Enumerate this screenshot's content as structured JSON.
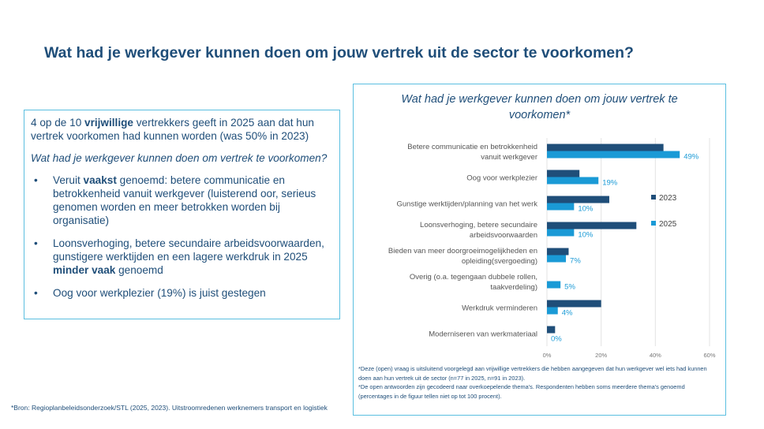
{
  "title": "Wat had je werkgever kunnen doen om jouw vertrek uit de sector te voorkomen?",
  "left": {
    "intro_pre": "4 op de 10 ",
    "intro_bold": "vrijwillige",
    "intro_post": " vertrekkers geeft in 2025 aan dat hun vertrek voorkomen had kunnen worden (was 50% in 2023)",
    "question": "Wat had je werkgever kunnen doen om vertrek te voorkomen?",
    "b1_pre": "Veruit ",
    "b1_bold": "vaakst",
    "b1_post": " genoemd: betere communicatie en betrokkenheid vanuit werkgever (luisterend oor, serieus genomen worden en meer betrokken worden bij organisatie)",
    "b2_pre": "Loonsverhoging, betere secundaire arbeidsvoorwaarden, gunstigere werktijden en een lagere werkdruk in 2025 ",
    "b2_bold": "minder vaak",
    "b2_post": " genoemd",
    "b3": "Oog voor werkplezier (19%) is juist gestegen"
  },
  "source": "*Bron: Regioplanbeleidsonderzoek/STL (2025, 2023). Uitstroomredenen werknemers transport en logistiek",
  "footnote1": "*Deze (open) vraag is uitsluitend voorgelegd aan vrijwillige vertrekkers die hebben aangegeven dat hun werkgever  wel iets had kunnen doen aan hun vertrek uit de sector (n=77 in 2025, n=91 in 2023).",
  "footnote2": "*De open antwoorden zijn gecodeerd naar overkoepelende thema's. Respondenten hebben soms meerdere thema's genoemd (percentages in de figuur tellen niet op tot 100 procent).",
  "chart_data": {
    "type": "bar",
    "orientation": "horizontal",
    "title": "Wat had je werkgever kunnen doen om jouw vertrek te voorkomen*",
    "categories": [
      [
        "Betere communicatie en betrokkenheid",
        "vanuit werkgever"
      ],
      [
        "Oog voor werkplezier"
      ],
      [
        "Gunstige werktijden/planning van het werk"
      ],
      [
        "Loonsverhoging, betere secundaire",
        "arbeidsvoorwaarden"
      ],
      [
        "Bieden van meer doorgroeimogelijkheden en",
        "opleiding(svergoeding)"
      ],
      [
        "Overig (o.a. tegengaan dubbele rollen,",
        "taakverdeling)"
      ],
      [
        "Werkdruk verminderen"
      ],
      [
        "Moderniseren van werkmateriaal"
      ]
    ],
    "series": [
      {
        "name": "2023",
        "color": "#1f4e79",
        "values": [
          43,
          12,
          23,
          33,
          8,
          0,
          20,
          3
        ],
        "labels": false
      },
      {
        "name": "2025",
        "color": "#1a9ad6",
        "values": [
          49,
          19,
          10,
          10,
          7,
          5,
          4,
          0
        ],
        "labels": true
      }
    ],
    "xlim": [
      0,
      60
    ],
    "xticks": [
      "0%",
      "20%",
      "40%",
      "60%"
    ],
    "tick_values": [
      0,
      20,
      40,
      60
    ],
    "grid": true,
    "legend": "right"
  }
}
